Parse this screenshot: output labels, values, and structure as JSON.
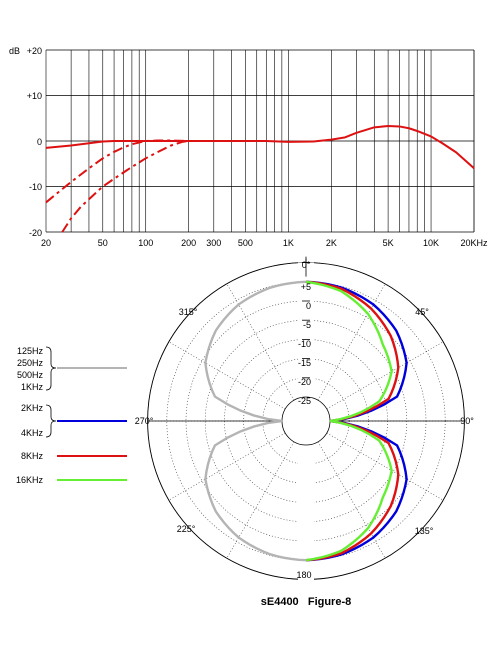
{
  "chart_data": [
    {
      "type": "line",
      "chart": "frequency_response",
      "ylabel": "dB",
      "xscale": "log",
      "xlim": [
        20,
        20000
      ],
      "ylim": [
        -20,
        20
      ],
      "yticks": [
        20,
        10,
        0,
        -10,
        -20
      ],
      "ytick_labels": [
        "+20",
        "+10",
        "0",
        "-10",
        "-20"
      ],
      "xticks": [
        20,
        50,
        100,
        200,
        300,
        500,
        1000,
        2000,
        5000,
        10000,
        20000
      ],
      "xtick_labels": [
        "20",
        "50",
        "100",
        "200",
        "300",
        "500",
        "1K",
        "2K",
        "5K",
        "10K",
        "20KHz"
      ],
      "grid": true,
      "series": [
        {
          "style": "solid",
          "color": "#dd1111",
          "x": [
            20,
            30,
            40,
            50,
            60,
            80,
            100,
            150,
            200,
            300,
            500,
            700,
            1000,
            1500,
            2000,
            2500,
            3000,
            4000,
            5000,
            6000,
            7000,
            8000,
            10000,
            12000,
            15000,
            20000
          ],
          "y": [
            -1.5,
            -1.0,
            -0.5,
            -0.1,
            0,
            0,
            0,
            0,
            0,
            0,
            0,
            0,
            -0.2,
            -0.1,
            0.3,
            0.8,
            1.8,
            3.0,
            3.3,
            3.2,
            2.8,
            2.2,
            1.0,
            -0.5,
            -2.5,
            -6.0
          ]
        },
        {
          "style": "dashed",
          "color": "#dd1111",
          "x": [
            20,
            25,
            30,
            40,
            50,
            60,
            70,
            80,
            100,
            120,
            150,
            200,
            300,
            500
          ],
          "y": [
            -13.5,
            -11.0,
            -9.0,
            -6.0,
            -3.8,
            -2.4,
            -1.4,
            -0.7,
            0,
            0.1,
            0.1,
            0,
            0,
            0
          ]
        },
        {
          "style": "dashed",
          "color": "#dd1111",
          "x": [
            26,
            30,
            35,
            40,
            50,
            60,
            70,
            80,
            100,
            120,
            150,
            180,
            200,
            300
          ],
          "y": [
            -20,
            -17.0,
            -14.5,
            -12.8,
            -10.0,
            -8.3,
            -6.9,
            -5.7,
            -3.8,
            -2.5,
            -1.0,
            -0.2,
            0,
            0
          ]
        }
      ]
    },
    {
      "type": "polar",
      "chart": "polar_pattern",
      "angle_labels": {
        "a0": "0°",
        "a45": "45°",
        "a90": "90°",
        "a135": "135°",
        "a180": "180",
        "a225": "225°",
        "a270": "270°",
        "a315": "315°"
      },
      "rlim": [
        -30,
        5
      ],
      "rticks": [
        5,
        0,
        -5,
        -10,
        -15,
        -20,
        -25
      ],
      "rtick_labels": [
        "+5",
        "0",
        "-5",
        "-10",
        "-15",
        "-20",
        "-25"
      ],
      "legend": [
        {
          "labels": [
            "125Hz",
            "250Hz",
            "500Hz",
            "1KHz"
          ],
          "color": "#b4b4b4"
        },
        {
          "labels": [
            "2KHz",
            "4KHz"
          ],
          "color": "#0000dd"
        },
        {
          "labels": [
            "8KHz"
          ],
          "color": "#dd1111"
        },
        {
          "labels": [
            "16KHz"
          ],
          "color": "#66ee33"
        }
      ],
      "series": [
        {
          "name": "125Hz–1KHz",
          "color": "#b4b4b4",
          "pattern": "figure-8",
          "angle_deg": [
            0,
            15,
            30,
            45,
            60,
            75,
            90,
            105,
            120,
            135,
            150,
            165,
            180
          ],
          "level_db": [
            0,
            -0.3,
            -1.2,
            -3.0,
            -6.0,
            -11.7,
            -30,
            -11.7,
            -6.0,
            -3.0,
            -1.2,
            -0.3,
            0
          ]
        },
        {
          "name": "2KHz–4KHz",
          "color": "#0000dd",
          "pattern": "figure-8",
          "angle_deg": [
            0,
            15,
            30,
            45,
            60,
            75,
            90,
            105,
            120,
            135,
            150,
            165,
            180
          ],
          "level_db": [
            0,
            -0.3,
            -1.2,
            -3.0,
            -6.0,
            -11.7,
            -30,
            -11.7,
            -6.0,
            -3.0,
            -1.2,
            -0.3,
            0
          ]
        },
        {
          "name": "8KHz",
          "color": "#dd1111",
          "pattern": "figure-8",
          "angle_deg": [
            0,
            15,
            30,
            45,
            60,
            75,
            90,
            105,
            120,
            135,
            150,
            165,
            180
          ],
          "level_db": [
            0,
            -0.6,
            -2.4,
            -5.0,
            -8.5,
            -14.0,
            -30,
            -14.0,
            -8.5,
            -5.0,
            -2.4,
            -0.6,
            0
          ]
        },
        {
          "name": "16KHz",
          "color": "#66ee33",
          "pattern": "figure-8",
          "angle_deg": [
            0,
            15,
            30,
            45,
            60,
            75,
            90,
            105,
            120,
            135,
            150,
            165,
            180
          ],
          "level_db": [
            0,
            -1.2,
            -4.0,
            -8.0,
            -10.5,
            -16.5,
            -30,
            -16.5,
            -10.5,
            -8.0,
            -4.0,
            -1.2,
            0
          ]
        }
      ]
    }
  ],
  "caption": "sE4400   Figure-8"
}
